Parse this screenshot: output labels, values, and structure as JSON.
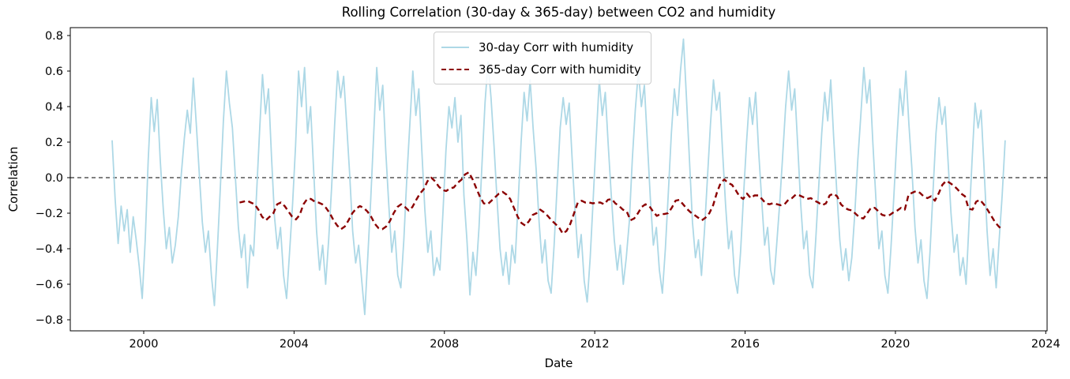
{
  "figure": {
    "title": "Rolling Correlation (30-day & 365-day) between CO2 and humidity",
    "xlabel": "Date",
    "ylabel": "Correlation",
    "background_color": "#ffffff",
    "frame_color": "#000000"
  },
  "legend": {
    "items": [
      {
        "label": "30-day Corr with humidity",
        "color": "#ADD8E6",
        "style": "solid"
      },
      {
        "label": "365-day Corr with humidity",
        "color": "#8B0000",
        "style": "dashed"
      }
    ]
  },
  "chart_data": {
    "type": "line",
    "title": "Rolling Correlation (30-day & 365-day) between CO2 and humidity",
    "xlabel": "Date",
    "ylabel": "Correlation",
    "xlim": [
      1998.046,
      2024.036
    ],
    "ylim": [
      -0.8622,
      0.8444
    ],
    "grid": false,
    "legend_position": "upper center",
    "zero_line": {
      "value": 0.0,
      "color": "#000000",
      "style": "dashed"
    },
    "xticks": {
      "values": [
        2000,
        2004,
        2008,
        2012,
        2016,
        2020,
        2024
      ],
      "labels": [
        "2000",
        "2004",
        "2008",
        "2012",
        "2016",
        "2020",
        "2024"
      ]
    },
    "yticks": {
      "values": [
        0.8,
        0.6,
        0.4,
        0.2,
        0.0,
        -0.2,
        -0.4,
        -0.6,
        -0.8
      ],
      "labels": [
        "0.8",
        "0.6",
        "0.4",
        "0.2",
        "0.0",
        "−0.2",
        "−0.4",
        "−0.6",
        "−0.8"
      ]
    },
    "series": [
      {
        "name": "30-day Corr with humidity",
        "color": "#ADD8E6",
        "line_style": "solid",
        "line_width": 1.8,
        "x_start": 1999.16,
        "x_step": 0.08,
        "values": [
          0.21,
          -0.12,
          -0.37,
          -0.16,
          -0.3,
          -0.18,
          -0.42,
          -0.22,
          -0.35,
          -0.5,
          -0.68,
          -0.35,
          0.1,
          0.45,
          0.26,
          0.44,
          0.1,
          -0.18,
          -0.4,
          -0.28,
          -0.48,
          -0.38,
          -0.22,
          0.02,
          0.22,
          0.38,
          0.25,
          0.56,
          0.3,
          0.02,
          -0.25,
          -0.42,
          -0.3,
          -0.55,
          -0.72,
          -0.4,
          -0.05,
          0.32,
          0.6,
          0.42,
          0.28,
          0.0,
          -0.28,
          -0.45,
          -0.32,
          -0.62,
          -0.38,
          -0.44,
          -0.1,
          0.25,
          0.58,
          0.36,
          0.5,
          0.12,
          -0.22,
          -0.4,
          -0.28,
          -0.55,
          -0.68,
          -0.42,
          -0.15,
          0.18,
          0.6,
          0.4,
          0.62,
          0.25,
          0.4,
          0.05,
          -0.3,
          -0.52,
          -0.38,
          -0.6,
          -0.35,
          -0.05,
          0.3,
          0.6,
          0.45,
          0.57,
          0.3,
          0.02,
          -0.3,
          -0.48,
          -0.38,
          -0.58,
          -0.77,
          -0.45,
          -0.12,
          0.25,
          0.62,
          0.38,
          0.52,
          0.15,
          -0.15,
          -0.42,
          -0.3,
          -0.55,
          -0.62,
          -0.35,
          0.0,
          0.3,
          0.6,
          0.35,
          0.5,
          0.15,
          -0.18,
          -0.42,
          -0.3,
          -0.55,
          -0.45,
          -0.52,
          -0.2,
          0.15,
          0.4,
          0.28,
          0.45,
          0.2,
          0.35,
          -0.1,
          -0.35,
          -0.66,
          -0.42,
          -0.55,
          -0.28,
          0.08,
          0.42,
          0.65,
          0.45,
          0.18,
          -0.12,
          -0.4,
          -0.55,
          -0.42,
          -0.6,
          -0.38,
          -0.48,
          -0.15,
          0.2,
          0.48,
          0.32,
          0.55,
          0.28,
          0.05,
          -0.25,
          -0.48,
          -0.35,
          -0.58,
          -0.65,
          -0.38,
          -0.05,
          0.28,
          0.45,
          0.3,
          0.42,
          0.1,
          -0.2,
          -0.45,
          -0.32,
          -0.58,
          -0.7,
          -0.45,
          -0.12,
          0.22,
          0.55,
          0.35,
          0.48,
          0.18,
          -0.1,
          -0.35,
          -0.52,
          -0.38,
          -0.6,
          -0.45,
          -0.25,
          0.1,
          0.38,
          0.6,
          0.4,
          0.52,
          0.2,
          -0.12,
          -0.38,
          -0.28,
          -0.52,
          -0.65,
          -0.4,
          -0.08,
          0.25,
          0.5,
          0.35,
          0.6,
          0.78,
          0.45,
          0.1,
          -0.25,
          -0.45,
          -0.35,
          -0.55,
          -0.3,
          0.0,
          0.3,
          0.55,
          0.38,
          0.48,
          0.15,
          -0.15,
          -0.4,
          -0.3,
          -0.55,
          -0.65,
          -0.42,
          -0.1,
          0.2,
          0.45,
          0.3,
          0.48,
          0.15,
          -0.12,
          -0.38,
          -0.28,
          -0.52,
          -0.6,
          -0.38,
          -0.15,
          0.12,
          0.4,
          0.6,
          0.38,
          0.5,
          0.18,
          -0.15,
          -0.4,
          -0.3,
          -0.55,
          -0.62,
          -0.35,
          -0.05,
          0.25,
          0.48,
          0.32,
          0.55,
          0.22,
          -0.08,
          -0.35,
          -0.52,
          -0.4,
          -0.58,
          -0.45,
          -0.2,
          0.1,
          0.35,
          0.62,
          0.42,
          0.55,
          0.2,
          -0.12,
          -0.4,
          -0.3,
          -0.55,
          -0.65,
          -0.4,
          -0.1,
          0.22,
          0.5,
          0.35,
          0.6,
          0.3,
          0.05,
          -0.28,
          -0.48,
          -0.35,
          -0.58,
          -0.68,
          -0.42,
          -0.08,
          0.25,
          0.45,
          0.3,
          0.4,
          0.1,
          -0.2,
          -0.42,
          -0.32,
          -0.55,
          -0.45,
          -0.6,
          -0.25,
          0.1,
          0.42,
          0.28,
          0.38,
          0.05,
          -0.3,
          -0.55,
          -0.4,
          -0.62,
          -0.35,
          -0.1,
          0.21
        ]
      },
      {
        "name": "365-day Corr with humidity",
        "color": "#8B0000",
        "line_style": "dashed",
        "line_width": 2.4,
        "x_start": 2002.55,
        "x_step": 0.1,
        "values": [
          -0.14,
          -0.135,
          -0.13,
          -0.14,
          -0.15,
          -0.18,
          -0.22,
          -0.24,
          -0.22,
          -0.2,
          -0.15,
          -0.14,
          -0.16,
          -0.19,
          -0.22,
          -0.235,
          -0.21,
          -0.15,
          -0.12,
          -0.12,
          -0.135,
          -0.14,
          -0.15,
          -0.17,
          -0.2,
          -0.24,
          -0.27,
          -0.29,
          -0.275,
          -0.24,
          -0.2,
          -0.175,
          -0.16,
          -0.17,
          -0.19,
          -0.22,
          -0.26,
          -0.285,
          -0.29,
          -0.275,
          -0.245,
          -0.2,
          -0.165,
          -0.15,
          -0.165,
          -0.185,
          -0.165,
          -0.125,
          -0.09,
          -0.065,
          -0.02,
          0.0,
          -0.02,
          -0.05,
          -0.07,
          -0.075,
          -0.06,
          -0.055,
          -0.03,
          -0.012,
          0.018,
          0.03,
          -0.01,
          -0.06,
          -0.11,
          -0.145,
          -0.15,
          -0.13,
          -0.11,
          -0.09,
          -0.08,
          -0.095,
          -0.12,
          -0.17,
          -0.22,
          -0.255,
          -0.27,
          -0.245,
          -0.21,
          -0.2,
          -0.18,
          -0.195,
          -0.215,
          -0.24,
          -0.26,
          -0.28,
          -0.315,
          -0.3,
          -0.26,
          -0.2,
          -0.14,
          -0.13,
          -0.14,
          -0.14,
          -0.145,
          -0.14,
          -0.14,
          -0.15,
          -0.125,
          -0.12,
          -0.145,
          -0.16,
          -0.18,
          -0.19,
          -0.24,
          -0.23,
          -0.2,
          -0.165,
          -0.15,
          -0.16,
          -0.19,
          -0.215,
          -0.205,
          -0.205,
          -0.2,
          -0.17,
          -0.13,
          -0.125,
          -0.15,
          -0.175,
          -0.195,
          -0.21,
          -0.225,
          -0.24,
          -0.225,
          -0.2,
          -0.155,
          -0.085,
          -0.03,
          -0.01,
          -0.03,
          -0.04,
          -0.07,
          -0.105,
          -0.12,
          -0.09,
          -0.115,
          -0.1,
          -0.1,
          -0.12,
          -0.145,
          -0.15,
          -0.143,
          -0.15,
          -0.155,
          -0.15,
          -0.125,
          -0.115,
          -0.095,
          -0.1,
          -0.11,
          -0.12,
          -0.115,
          -0.13,
          -0.14,
          -0.155,
          -0.145,
          -0.1,
          -0.09,
          -0.105,
          -0.15,
          -0.17,
          -0.18,
          -0.185,
          -0.205,
          -0.225,
          -0.23,
          -0.2,
          -0.17,
          -0.17,
          -0.19,
          -0.21,
          -0.215,
          -0.21,
          -0.195,
          -0.185,
          -0.17,
          -0.18,
          -0.095,
          -0.085,
          -0.075,
          -0.085,
          -0.105,
          -0.115,
          -0.105,
          -0.13,
          -0.09,
          -0.04,
          -0.018,
          -0.03,
          -0.045,
          -0.065,
          -0.09,
          -0.105,
          -0.175,
          -0.18,
          -0.135,
          -0.125,
          -0.15,
          -0.18,
          -0.215,
          -0.25,
          -0.275,
          -0.295
        ]
      }
    ]
  }
}
